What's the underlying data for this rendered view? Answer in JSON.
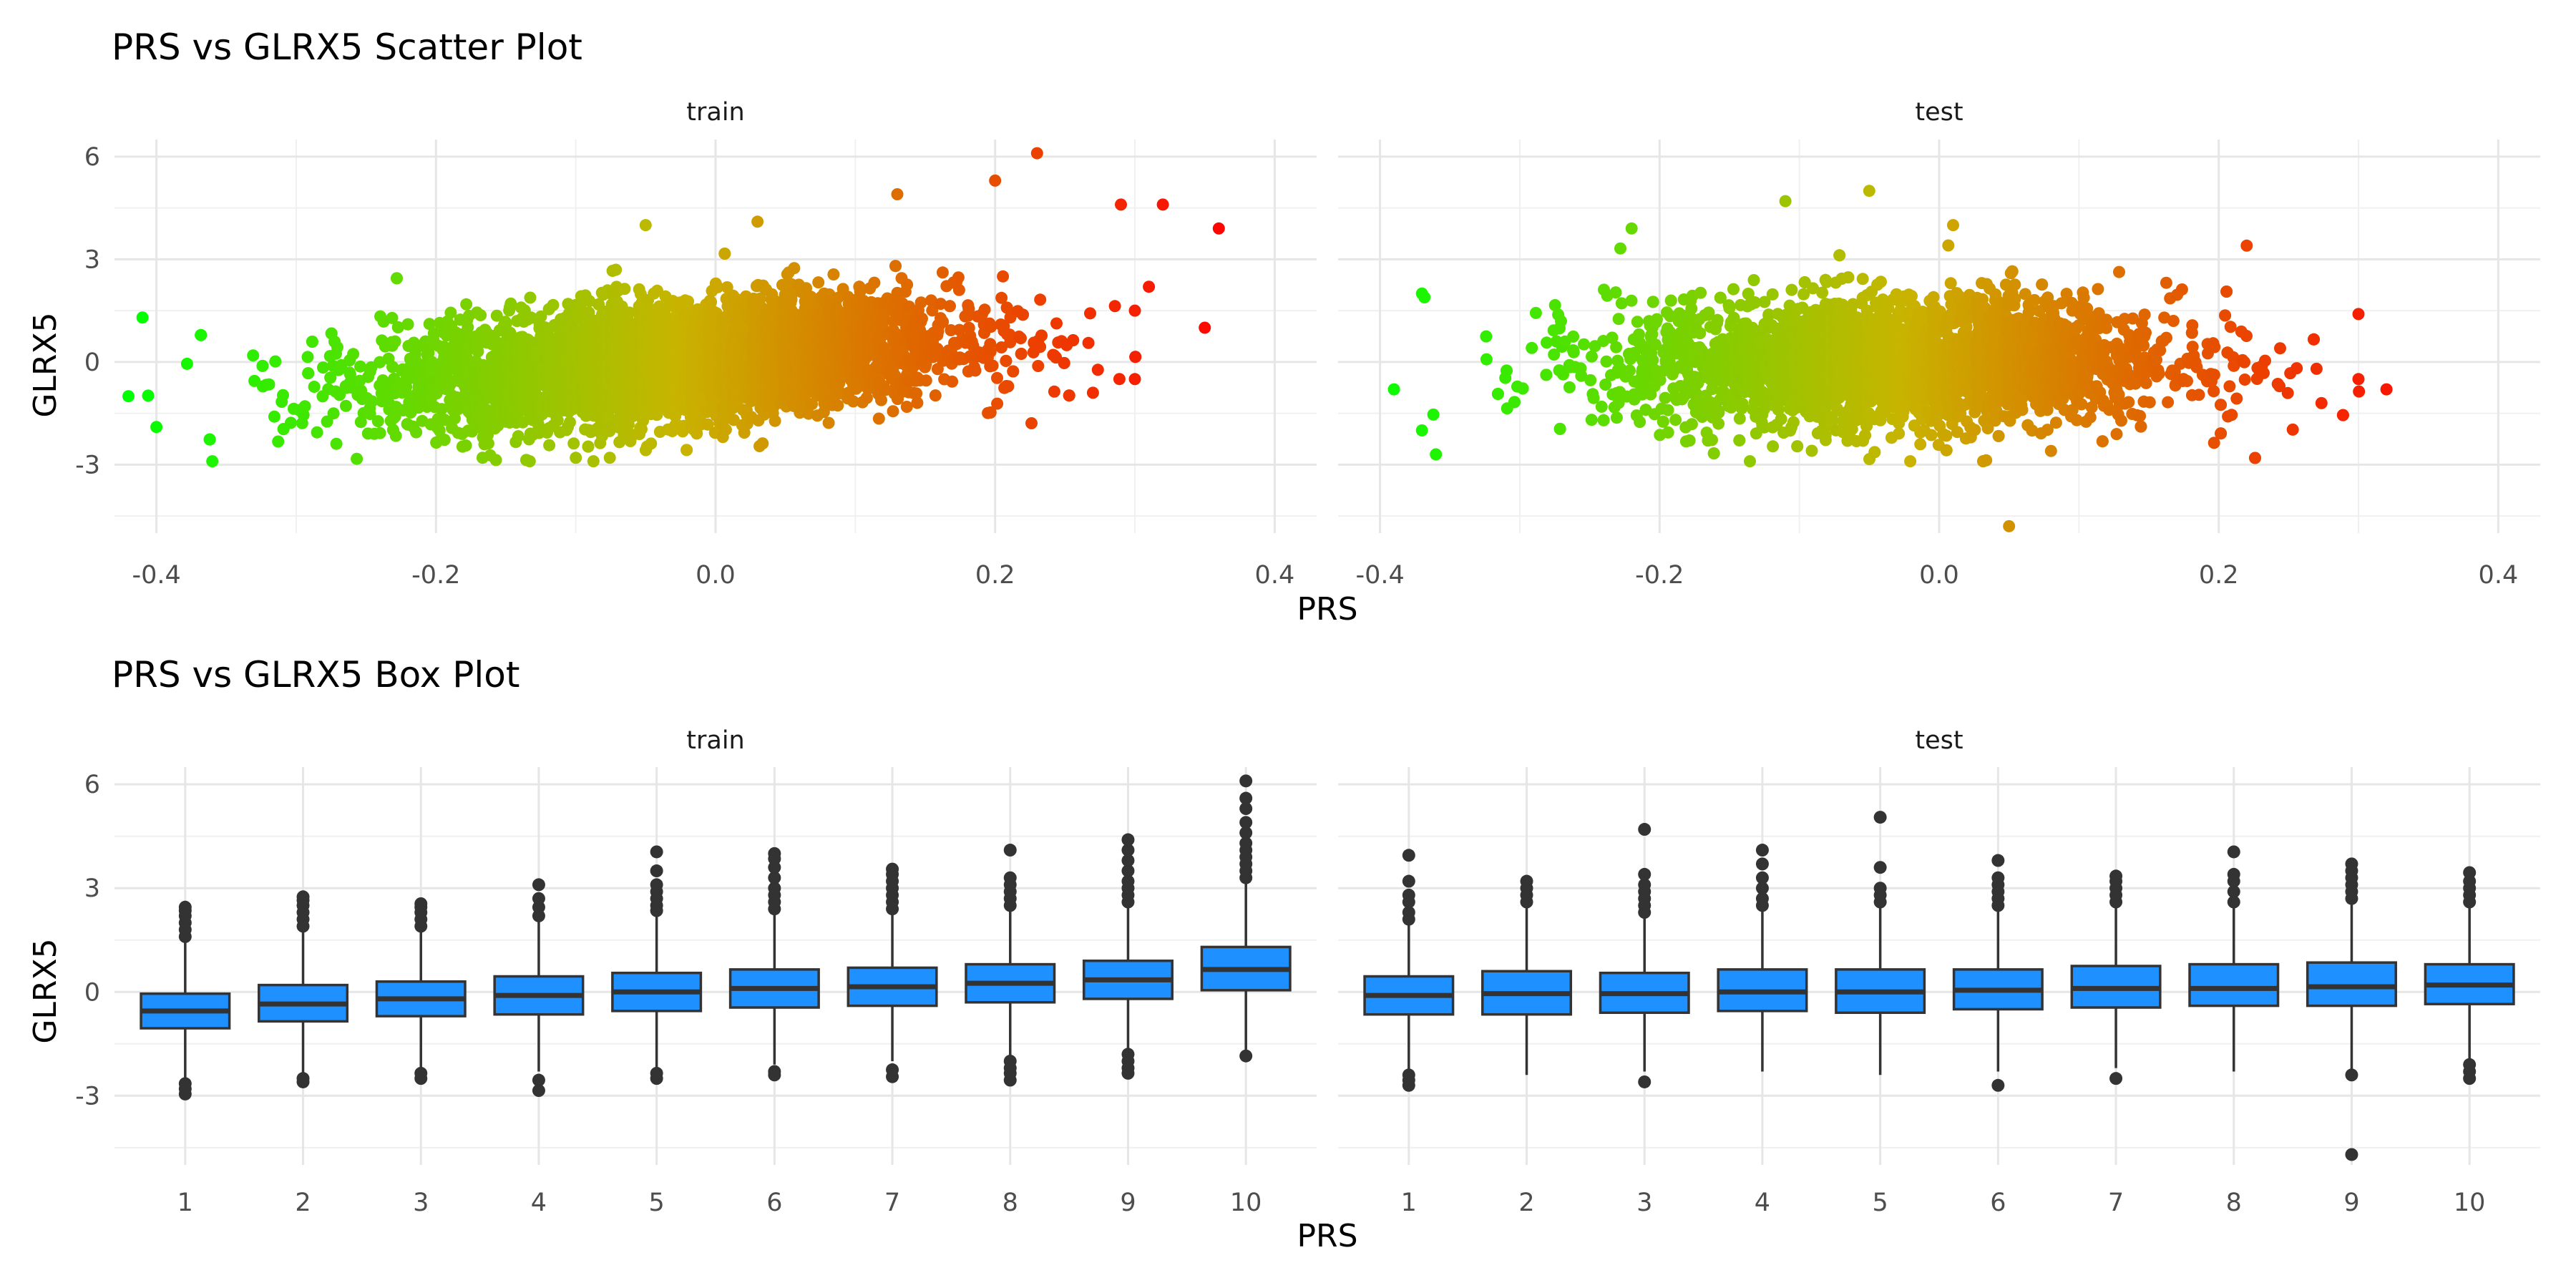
{
  "chart_data": [
    {
      "type": "scatter",
      "title": "PRS vs GLRX5 Scatter Plot",
      "xlabel": "PRS",
      "ylabel": "GLRX5",
      "xlim": [
        -0.43,
        0.43
      ],
      "ylim": [
        -5.0,
        6.5
      ],
      "x_ticks": [
        -0.4,
        -0.2,
        0.0,
        0.2,
        0.4
      ],
      "x_tick_labels": [
        "-0.4",
        "-0.2",
        "0.0",
        "0.2",
        "0.4"
      ],
      "y_ticks": [
        -3,
        0,
        3,
        6
      ],
      "y_tick_labels": [
        "-3",
        "0",
        "3",
        "6"
      ],
      "grid": true,
      "color_scale": {
        "low": "#00ff00",
        "mid": "#c8b400",
        "high": "#ff0000",
        "domain": [
          -0.42,
          0.37
        ]
      },
      "facets": [
        {
          "name": "train",
          "cloud": {
            "n": 5200,
            "x_mean": -0.03,
            "x_sd": 0.1,
            "x_range": [
              -0.42,
              0.37
            ],
            "slope": 3.0,
            "intercept": 0.1,
            "noise_sd": 0.85
          },
          "points": [
            {
              "x": -0.41,
              "y": 1.3
            },
            {
              "x": -0.42,
              "y": -1.0
            },
            {
              "x": -0.4,
              "y": -1.9
            },
            {
              "x": -0.36,
              "y": -2.9
            },
            {
              "x": -0.05,
              "y": 4.0
            },
            {
              "x": 0.03,
              "y": 4.1
            },
            {
              "x": 0.13,
              "y": 4.9
            },
            {
              "x": 0.2,
              "y": 5.3
            },
            {
              "x": 0.23,
              "y": 6.1
            },
            {
              "x": 0.29,
              "y": 4.6
            },
            {
              "x": 0.32,
              "y": 4.6
            },
            {
              "x": 0.36,
              "y": 3.9
            },
            {
              "x": 0.35,
              "y": 1.0
            },
            {
              "x": 0.3,
              "y": -0.5
            },
            {
              "x": 0.27,
              "y": -0.9
            },
            {
              "x": -0.1,
              "y": -2.8
            },
            {
              "x": 0.31,
              "y": 2.2
            },
            {
              "x": 0.3,
              "y": 1.5
            }
          ]
        },
        {
          "name": "test",
          "cloud": {
            "n": 3400,
            "x_mean": -0.03,
            "x_sd": 0.1,
            "x_range": [
              -0.39,
              0.32
            ],
            "slope": 0.3,
            "intercept": 0.0,
            "noise_sd": 0.95
          },
          "points": [
            {
              "x": -0.37,
              "y": 2.0
            },
            {
              "x": -0.39,
              "y": -0.8
            },
            {
              "x": -0.37,
              "y": -2.0
            },
            {
              "x": -0.36,
              "y": -2.7
            },
            {
              "x": -0.22,
              "y": 3.9
            },
            {
              "x": -0.11,
              "y": 4.7
            },
            {
              "x": -0.05,
              "y": 5.0
            },
            {
              "x": 0.01,
              "y": 4.0
            },
            {
              "x": 0.05,
              "y": -4.8
            },
            {
              "x": 0.22,
              "y": 3.4
            },
            {
              "x": 0.3,
              "y": 1.4
            },
            {
              "x": 0.3,
              "y": -0.5
            },
            {
              "x": 0.32,
              "y": -0.8
            },
            {
              "x": 0.27,
              "y": -0.2
            },
            {
              "x": 0.08,
              "y": -2.6
            }
          ]
        }
      ]
    },
    {
      "type": "box",
      "title": "PRS vs GLRX5 Box Plot",
      "xlabel": "PRS",
      "ylabel": "GLRX5",
      "categories": [
        "1",
        "2",
        "3",
        "4",
        "5",
        "6",
        "7",
        "8",
        "9",
        "10"
      ],
      "ylim": [
        -5.0,
        6.5
      ],
      "y_ticks": [
        -3,
        0,
        3,
        6
      ],
      "y_tick_labels": [
        "-3",
        "0",
        "3",
        "6"
      ],
      "grid": true,
      "box_fill": "#1e90ff",
      "facets": [
        {
          "name": "train",
          "boxes": [
            {
              "q1": -1.05,
              "median": -0.55,
              "q3": -0.05,
              "lo": -2.5,
              "hi": 1.5,
              "outliers": [
                1.6,
                1.8,
                2.0,
                2.2,
                2.35,
                2.45,
                -2.65,
                -2.8,
                -2.95
              ]
            },
            {
              "q1": -0.85,
              "median": -0.35,
              "q3": 0.2,
              "lo": -2.4,
              "hi": 1.8,
              "outliers": [
                1.9,
                2.1,
                2.3,
                2.5,
                2.65,
                2.75,
                -2.5,
                -2.6
              ]
            },
            {
              "q1": -0.7,
              "median": -0.2,
              "q3": 0.3,
              "lo": -2.2,
              "hi": 1.8,
              "outliers": [
                1.9,
                2.1,
                2.3,
                2.45,
                2.55,
                -2.35,
                -2.5
              ]
            },
            {
              "q1": -0.65,
              "median": -0.1,
              "q3": 0.45,
              "lo": -2.3,
              "hi": 2.1,
              "outliers": [
                2.2,
                2.45,
                2.7,
                3.1,
                -2.55,
                -2.85
              ]
            },
            {
              "q1": -0.55,
              "median": 0.0,
              "q3": 0.55,
              "lo": -2.2,
              "hi": 2.2,
              "outliers": [
                2.35,
                2.5,
                2.7,
                2.9,
                3.1,
                3.5,
                4.05,
                -2.35,
                -2.5
              ]
            },
            {
              "q1": -0.45,
              "median": 0.1,
              "q3": 0.65,
              "lo": -2.1,
              "hi": 2.3,
              "outliers": [
                2.4,
                2.6,
                2.8,
                3.0,
                3.3,
                3.6,
                3.85,
                4.0,
                -2.3,
                -2.4
              ]
            },
            {
              "q1": -0.4,
              "median": 0.15,
              "q3": 0.7,
              "lo": -2.0,
              "hi": 2.3,
              "outliers": [
                2.4,
                2.6,
                2.8,
                3.0,
                3.2,
                3.4,
                3.55,
                -2.25,
                -2.45
              ]
            },
            {
              "q1": -0.3,
              "median": 0.25,
              "q3": 0.8,
              "lo": -1.9,
              "hi": 2.4,
              "outliers": [
                2.5,
                2.7,
                2.9,
                3.1,
                3.3,
                4.1,
                -2.0,
                -2.2,
                -2.35,
                -2.55
              ]
            },
            {
              "q1": -0.2,
              "median": 0.35,
              "q3": 0.9,
              "lo": -1.7,
              "hi": 2.5,
              "outliers": [
                2.6,
                2.8,
                3.0,
                3.2,
                3.5,
                3.8,
                4.1,
                4.4,
                -1.8,
                -2.0,
                -2.2,
                -2.35
              ]
            },
            {
              "q1": 0.05,
              "median": 0.65,
              "q3": 1.3,
              "lo": -1.8,
              "hi": 3.2,
              "outliers": [
                3.3,
                3.5,
                3.7,
                3.9,
                4.1,
                4.3,
                4.6,
                4.9,
                5.3,
                5.6,
                6.1,
                -1.85
              ]
            }
          ]
        },
        {
          "name": "test",
          "boxes": [
            {
              "q1": -0.65,
              "median": -0.1,
              "q3": 0.45,
              "lo": -2.3,
              "hi": 2.0,
              "outliers": [
                2.1,
                2.3,
                2.6,
                2.8,
                3.2,
                3.95,
                -2.4,
                -2.55,
                -2.7
              ]
            },
            {
              "q1": -0.65,
              "median": -0.05,
              "q3": 0.6,
              "lo": -2.4,
              "hi": 2.5,
              "outliers": [
                2.6,
                2.8,
                3.0,
                3.2
              ]
            },
            {
              "q1": -0.6,
              "median": -0.05,
              "q3": 0.55,
              "lo": -2.3,
              "hi": 2.2,
              "outliers": [
                2.3,
                2.5,
                2.7,
                2.9,
                3.1,
                3.4,
                4.7,
                -2.6
              ]
            },
            {
              "q1": -0.55,
              "median": 0.0,
              "q3": 0.65,
              "lo": -2.3,
              "hi": 2.4,
              "outliers": [
                2.5,
                2.7,
                3.0,
                3.3,
                3.7,
                4.1
              ]
            },
            {
              "q1": -0.6,
              "median": 0.0,
              "q3": 0.65,
              "lo": -2.4,
              "hi": 2.5,
              "outliers": [
                2.6,
                2.8,
                3.0,
                3.6,
                5.05
              ]
            },
            {
              "q1": -0.5,
              "median": 0.05,
              "q3": 0.65,
              "lo": -2.3,
              "hi": 2.4,
              "outliers": [
                2.5,
                2.7,
                2.9,
                3.1,
                3.3,
                3.8,
                -2.7
              ]
            },
            {
              "q1": -0.45,
              "median": 0.1,
              "q3": 0.75,
              "lo": -2.2,
              "hi": 2.5,
              "outliers": [
                2.6,
                2.8,
                3.0,
                3.2,
                3.35,
                -2.5
              ]
            },
            {
              "q1": -0.4,
              "median": 0.1,
              "q3": 0.8,
              "lo": -2.3,
              "hi": 2.5,
              "outliers": [
                2.6,
                2.9,
                3.2,
                3.4,
                4.05
              ]
            },
            {
              "q1": -0.4,
              "median": 0.15,
              "q3": 0.85,
              "lo": -2.3,
              "hi": 2.6,
              "outliers": [
                2.7,
                2.9,
                3.1,
                3.3,
                3.5,
                3.7,
                -2.4,
                -4.7
              ]
            },
            {
              "q1": -0.35,
              "median": 0.2,
              "q3": 0.8,
              "lo": -2.0,
              "hi": 2.5,
              "outliers": [
                2.6,
                2.8,
                3.0,
                3.2,
                3.45,
                -2.1,
                -2.3,
                -2.5
              ]
            }
          ]
        }
      ]
    }
  ]
}
